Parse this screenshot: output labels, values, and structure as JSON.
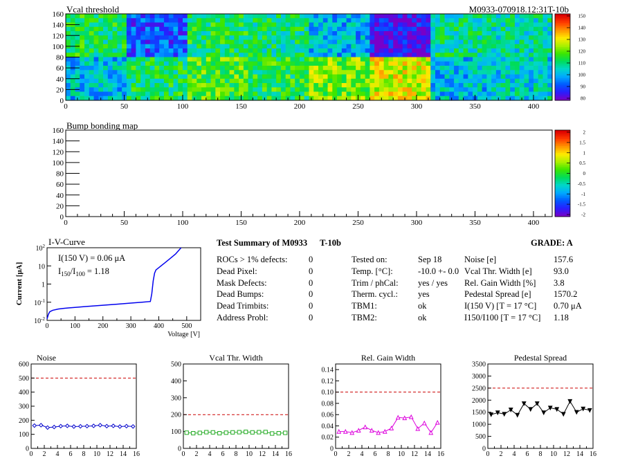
{
  "header": {
    "vcal_title": "Vcal threshold",
    "module_id": "M0933-070918.12:31T-10b",
    "bump_title": "Bump bonding map"
  },
  "maps": {
    "x_ticks": [
      "0",
      "50",
      "100",
      "150",
      "200",
      "250",
      "300",
      "350",
      "400"
    ],
    "y_ticks": [
      "0",
      "20",
      "40",
      "60",
      "80",
      "100",
      "120",
      "140",
      "160"
    ],
    "vcal_palette_ticks": [
      "150",
      "140",
      "130",
      "120",
      "110",
      "100",
      "90",
      "80"
    ],
    "bump_palette_ticks": [
      "2",
      "1.5",
      "1",
      "0.5",
      "0",
      "-0.5",
      "-1",
      "-1.5",
      "-2"
    ]
  },
  "iv": {
    "title": "I-V-Curve",
    "current_text": "I(150 V) = 0.06 μA",
    "ratio_text": "I150/I100 = 1.18",
    "ratio_prefix": "I",
    "ratio_sub1": "150",
    "ratio_sep": "/I",
    "ratio_sub2": "100",
    "ratio_value": "= 1.18",
    "ylabel": "Current [μA]",
    "xlabel": "Voltage [V]",
    "x_ticks": [
      "0",
      "100",
      "200",
      "300",
      "400",
      "500"
    ],
    "y_ticks": [
      "10-2",
      "10-1",
      "1",
      "10",
      "102"
    ]
  },
  "summary": {
    "title": "Test Summary of M0933",
    "title_suffix": "T-10b",
    "grade_label": "GRADE:",
    "grade": "A",
    "left": [
      {
        "label": "ROCs > 1% defects:",
        "value": "0"
      },
      {
        "label": "Dead Pixel:",
        "value": "0"
      },
      {
        "label": "Mask Defects:",
        "value": "0"
      },
      {
        "label": "Dead Bumps:",
        "value": "0"
      },
      {
        "label": "Dead Trimbits:",
        "value": "0"
      },
      {
        "label": "Address Probl:",
        "value": "0"
      }
    ],
    "middle": [
      {
        "label": "Tested on:",
        "value": "Sep 18"
      },
      {
        "label": "Temp. [°C]:",
        "value": "-10.0 +- 0.0"
      },
      {
        "label": "Trim / phCal:",
        "value": "yes / yes"
      },
      {
        "label": "Therm. cycl.:",
        "value": "yes"
      },
      {
        "label": "TBM1:",
        "value": "ok"
      },
      {
        "label": "TBM2:",
        "value": "ok"
      }
    ],
    "right": [
      {
        "label": "Noise [e]",
        "value": "157.6"
      },
      {
        "label": "Vcal Thr. Width [e]",
        "value": "93.0"
      },
      {
        "label": "Rel. Gain Width [%]",
        "value": "3.8"
      },
      {
        "label": "Pedestal Spread [e]",
        "value": "1570.2"
      },
      {
        "label": "I(150 V) [T = 17 °C]",
        "value": "0.70 μA"
      },
      {
        "label": "I150/I100 [T = 17 °C]",
        "value": "1.18"
      }
    ]
  },
  "colors": {
    "noise": "#0000cc",
    "vcal": "#22aa22",
    "gain": "#dd00dd",
    "pedestal": "#000000",
    "threshold_line": "#cc0000",
    "iv_curve": "#0000ee"
  },
  "chart_data": [
    {
      "type": "heatmap",
      "title": "Vcal threshold",
      "xlim": [
        0,
        416
      ],
      "ylim": [
        0,
        160
      ],
      "z_range": [
        75,
        155
      ],
      "roc_grid": {
        "columns": 8,
        "rows": 2
      },
      "roc_mean_values": {
        "top_row": [
          112,
          88,
          112,
          110,
          98,
          80,
          108,
          106
        ],
        "bottom_row": [
          100,
          112,
          118,
          114,
          122,
          130,
          100,
          103
        ]
      }
    },
    {
      "type": "heatmap",
      "title": "Bump bonding map",
      "xlim": [
        0,
        416
      ],
      "ylim": [
        0,
        160
      ],
      "z_range": [
        -2,
        2
      ]
    },
    {
      "type": "line",
      "title": "I-V-Curve",
      "xlabel": "Voltage [V]",
      "ylabel": "Current [μA]",
      "xlim": [
        0,
        550
      ],
      "ylim": [
        0.01,
        100
      ],
      "log_y": true,
      "x": [
        0,
        5,
        10,
        20,
        40,
        60,
        80,
        100,
        150,
        200,
        250,
        300,
        340,
        370,
        375,
        380,
        385,
        390,
        400,
        420,
        440,
        460,
        480
      ],
      "y": [
        0.012,
        0.022,
        0.03,
        0.036,
        0.042,
        0.046,
        0.049,
        0.052,
        0.06,
        0.068,
        0.078,
        0.09,
        0.1,
        0.11,
        0.3,
        1.5,
        4,
        6,
        8,
        14,
        25,
        45,
        100
      ]
    },
    {
      "type": "line",
      "title": "Noise",
      "xlim": [
        0,
        16
      ],
      "ylim": [
        0,
        600
      ],
      "threshold": 500,
      "x": [
        0,
        1,
        2,
        3,
        4,
        5,
        6,
        7,
        8,
        9,
        10,
        11,
        12,
        13,
        14,
        15
      ],
      "y": [
        162,
        165,
        148,
        152,
        158,
        160,
        155,
        157,
        158,
        160,
        165,
        158,
        160,
        155,
        158,
        156
      ]
    },
    {
      "type": "line",
      "title": "Vcal Thr. Width",
      "xlim": [
        0,
        16
      ],
      "ylim": [
        0,
        500
      ],
      "threshold": 200,
      "x": [
        0,
        1,
        2,
        3,
        4,
        5,
        6,
        7,
        8,
        9,
        10,
        11,
        12,
        13,
        14,
        15
      ],
      "y": [
        93,
        90,
        92,
        96,
        95,
        90,
        93,
        95,
        96,
        98,
        95,
        96,
        97,
        88,
        90,
        92
      ]
    },
    {
      "type": "line",
      "title": "Rel. Gain Width",
      "xlim": [
        0,
        16
      ],
      "ylim": [
        0,
        0.15
      ],
      "threshold": 0.1,
      "x": [
        0,
        1,
        2,
        3,
        4,
        5,
        6,
        7,
        8,
        9,
        10,
        11,
        12,
        13,
        14,
        15
      ],
      "y": [
        0.03,
        0.03,
        0.028,
        0.032,
        0.038,
        0.032,
        0.028,
        0.03,
        0.036,
        0.055,
        0.054,
        0.056,
        0.035,
        0.045,
        0.028,
        0.046
      ]
    },
    {
      "type": "line",
      "title": "Pedestal Spread",
      "xlim": [
        0,
        16
      ],
      "ylim": [
        0,
        3500
      ],
      "threshold": 2500,
      "x": [
        0,
        1,
        2,
        3,
        4,
        5,
        6,
        7,
        8,
        9,
        10,
        11,
        12,
        13,
        14,
        15
      ],
      "y": [
        1400,
        1480,
        1420,
        1600,
        1380,
        1860,
        1620,
        1860,
        1480,
        1680,
        1620,
        1420,
        1950,
        1500,
        1640,
        1580
      ]
    }
  ]
}
